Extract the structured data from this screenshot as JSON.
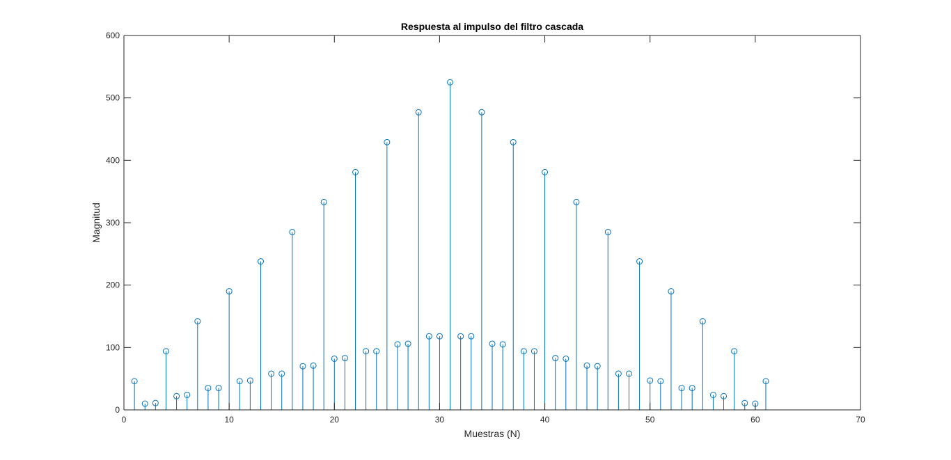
{
  "chart_data": {
    "type": "stem",
    "title": "Respuesta al impulso del filtro cascada",
    "xlabel": "Muestras (N)",
    "ylabel": "Magnitud",
    "xlim": [
      0,
      70
    ],
    "ylim": [
      0,
      600
    ],
    "xticks": [
      "0",
      "10",
      "20",
      "30",
      "40",
      "50",
      "60",
      "70"
    ],
    "yticks": [
      "0",
      "100",
      "200",
      "300",
      "400",
      "500",
      "600"
    ],
    "grid": false,
    "series": [
      {
        "name": "h[n]",
        "color": "#0072BD",
        "x": [
          1,
          2,
          3,
          4,
          5,
          6,
          7,
          8,
          9,
          10,
          11,
          12,
          13,
          14,
          15,
          16,
          17,
          18,
          19,
          20,
          21,
          22,
          23,
          24,
          25,
          26,
          27,
          28,
          29,
          30,
          31,
          32,
          33,
          34,
          35,
          36,
          37,
          38,
          39,
          40,
          41,
          42,
          43,
          44,
          45,
          46,
          47,
          48,
          49,
          50,
          51,
          52,
          53,
          54,
          55,
          56,
          57,
          58,
          59,
          60,
          61
        ],
        "values": [
          46,
          10,
          11,
          94,
          22,
          24,
          142,
          35,
          35,
          190,
          46,
          47,
          238,
          58,
          58,
          285,
          70,
          71,
          333,
          82,
          83,
          381,
          94,
          94,
          429,
          105,
          106,
          477,
          118,
          118,
          525,
          118,
          118,
          477,
          106,
          105,
          429,
          94,
          94,
          381,
          83,
          82,
          333,
          71,
          70,
          285,
          58,
          58,
          238,
          47,
          46,
          190,
          35,
          35,
          142,
          24,
          22,
          94,
          11,
          10,
          46
        ]
      }
    ]
  }
}
